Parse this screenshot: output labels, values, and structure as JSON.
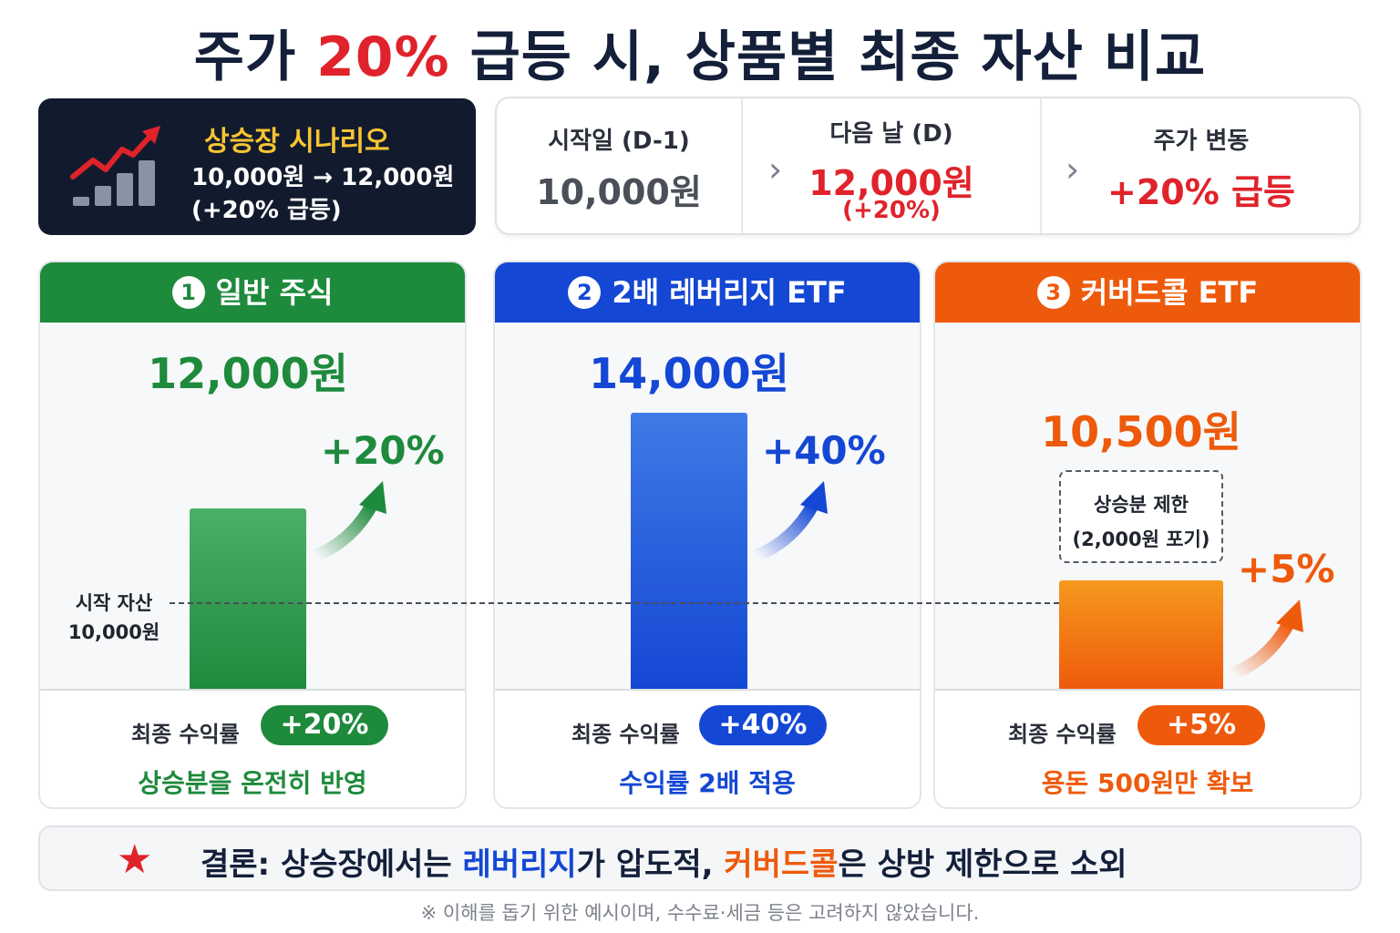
{
  "title": {
    "prefix": "주가 ",
    "highlight": "20%",
    "suffix": " 급등 시, 상품별 최종 자산 비교"
  },
  "scenario": {
    "icon": "rising-chart-icon",
    "title": "상승장 시나리오",
    "line1": "10,000원 → 12,000원",
    "line2": "(+20% 급등)"
  },
  "timeline": {
    "start_label": "시작일 (D-1)",
    "start_value": "10,000원",
    "next_label": "다음 날 (D)",
    "next_value": "12,000원",
    "next_sub": "(+20%)",
    "change_label": "주가 변동",
    "change_value": "+20% 급등",
    "arrow": "›"
  },
  "baseline": {
    "label_line1": "시작 자산",
    "label_line2": "10,000원",
    "value": 10000
  },
  "products": [
    {
      "num": "1",
      "name": "일반 주식",
      "price": "12,000원",
      "value": 12000,
      "pct": "+20%",
      "return_label": "최종 수익률",
      "return_value": "+20%",
      "note": "상승분을 온전히 반영",
      "color": "#1e8a3c"
    },
    {
      "num": "2",
      "name": "2배 레버리지 ETF",
      "price": "14,000원",
      "value": 14000,
      "pct": "+40%",
      "return_label": "최종 수익률",
      "return_value": "+40%",
      "note": "수익률 2배 적용",
      "color": "#1447d4"
    },
    {
      "num": "3",
      "name": "커버드콜 ETF",
      "price": "10,500원",
      "value": 10500,
      "pct": "+5%",
      "return_label": "최종 수익률",
      "return_value": "+5%",
      "note": "용돈 500원만 확보",
      "color": "#ee5a0c",
      "cap_line1": "상승분 제한",
      "cap_line2": "(2,000원 포기)"
    }
  ],
  "conclusion": {
    "icon": "star-icon",
    "part1": "결론:  상승장에서는 ",
    "leverage": "레버리지",
    "part2": "가 압도적, ",
    "covered": "커버드콜",
    "part3": "은 상방 제한으로 소외"
  },
  "footnote": "※ 이해를 돕기 위한 예시이며, 수수료·세금 등은 고려하지 않았습니다.",
  "chart_data": {
    "type": "bar",
    "title": "주가 20% 급등 시, 상품별 최종 자산 비교",
    "categories": [
      "일반 주식",
      "2배 레버리지 ETF",
      "커버드콜 ETF"
    ],
    "values": [
      12000,
      14000,
      10500
    ],
    "returns_percent": [
      20,
      40,
      5
    ],
    "baseline": 10000,
    "unit": "원",
    "colors": [
      "#1e8a3c",
      "#1447d4",
      "#ee5a0c"
    ]
  }
}
